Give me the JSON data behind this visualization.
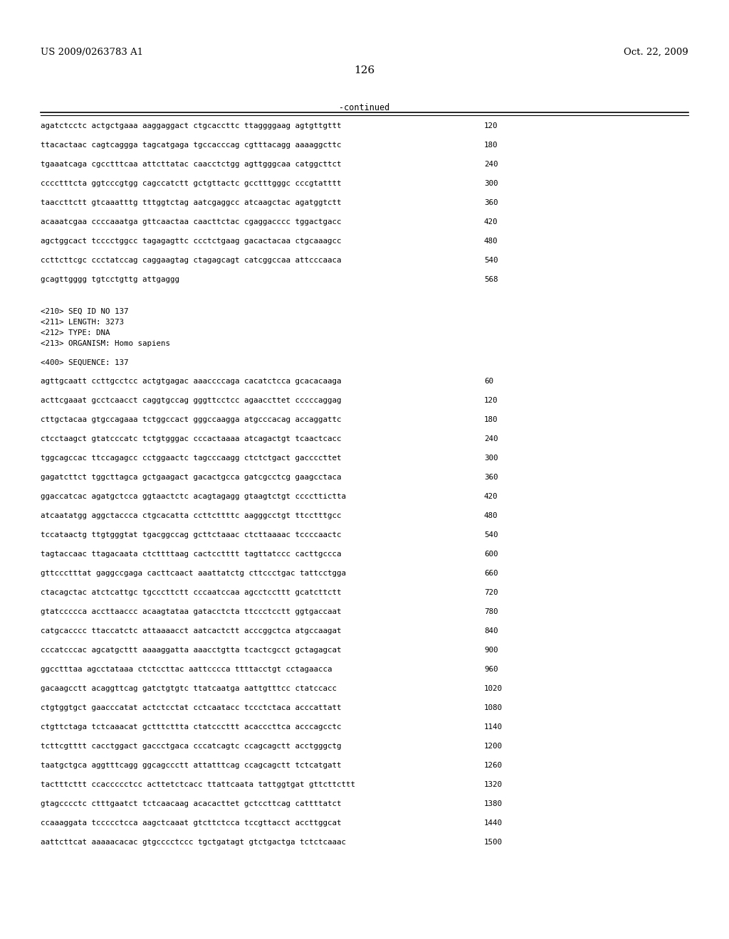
{
  "header_left": "US 2009/0263783 A1",
  "header_right": "Oct. 22, 2009",
  "page_number": "126",
  "continued_label": "-continued",
  "background_color": "#ffffff",
  "text_color": "#000000",
  "continued_section": [
    {
      "seq": "agatctcctc actgctgaaa aaggaggact ctgcaccttc ttaggggaag agtgttgttt",
      "num": "120"
    },
    {
      "seq": "ttacactaac cagtcaggga tagcatgaga tgccacccag cgtttacagg aaaaggcttc",
      "num": "180"
    },
    {
      "seq": "tgaaatcaga cgcctttcaa attcttatac caacctctgg agttgggcaa catggcttct",
      "num": "240"
    },
    {
      "seq": "cccctttcta ggtcccgtgg cagccatctt gctgttactc gcctttgggc cccgtatttt",
      "num": "300"
    },
    {
      "seq": "taaccttctt gtcaaatttg tttggtctag aatcgaggcc atcaagctac agatggtctt",
      "num": "360"
    },
    {
      "seq": "acaaatcgaa ccccaaatga gttcaactaa caacttctac cgaggacccc tggactgacc",
      "num": "420"
    },
    {
      "seq": "agctggcact tcccctggcc tagagagttc ccctctgaag gacactacaa ctgcaaagcc",
      "num": "480"
    },
    {
      "seq": "ccttcttcgc ccctatccag caggaagtag ctagagcagt catcggccaa attcccaaca",
      "num": "540"
    },
    {
      "seq": "gcagttgggg tgtcctgttg attgaggg",
      "num": "568"
    }
  ],
  "metadata": [
    "<210> SEQ ID NO 137",
    "<211> LENGTH: 3273",
    "<212> TYPE: DNA",
    "<213> ORGANISM: Homo sapiens"
  ],
  "seq_label": "<400> SEQUENCE: 137",
  "sequence_lines": [
    {
      "seq": "agttgcaatt ccttgcctcc actgtgagac aaaccccaga cacatctcca gcacacaaga",
      "num": "60"
    },
    {
      "seq": "acttcgaaat gcctcaacct caggtgccag gggttcctcc agaaccttet cccccaggag",
      "num": "120"
    },
    {
      "seq": "cttgctacaa gtgccagaaa tctggccact gggccaagga atgcccacag accaggattc",
      "num": "180"
    },
    {
      "seq": "ctcctaagct gtatcccatc tctgtgggac cccactaaaa atcagactgt tcaactcacc",
      "num": "240"
    },
    {
      "seq": "tggcagccac ttccagagcc cctggaactc tagcccaagg ctctctgact gaccccttet",
      "num": "300"
    },
    {
      "seq": "gagatcttct tggcttagca gctgaagact gacactgcca gatcgcctcg gaagcctaca",
      "num": "360"
    },
    {
      "seq": "ggaccatcac agatgctcca ggtaactctc acagtagagg gtaagtctgt ccccttictta",
      "num": "420"
    },
    {
      "seq": "atcaatatgg aggctaccca ctgcacatta ccttcttttc aagggcctgt ttcctttgcc",
      "num": "480"
    },
    {
      "seq": "tccataactg ttgtgggtat tgacggccag gcttctaaac ctcttaaaac tccccaactc",
      "num": "540"
    },
    {
      "seq": "tagtaccaac ttagacaata ctcttttaag cactcctttt tagttatccc cacttgccca",
      "num": "600"
    },
    {
      "seq": "gttccctttat gaggccgaga cacttcaact aaattatctg cttccctgac tattcctgga",
      "num": "660"
    },
    {
      "seq": "ctacagctac atctcattgc tgcccttctt cccaatccaa agcctccttt gcatcttctt",
      "num": "720"
    },
    {
      "seq": "gtatccccca accttaaccc acaagtataa gatacctcta ttccctcctt ggtgaccaat",
      "num": "780"
    },
    {
      "seq": "catgcacccc ttaccatctc attaaaacct aatcactctt acccggctca atgccaagat",
      "num": "840"
    },
    {
      "seq": "cccatcccac agcatgcttt aaaaggatta aaacctgtta tcactcgcct gctagagcat",
      "num": "900"
    },
    {
      "seq": "ggcctttaa agcctataaa ctctccttac aattcccca ttttacctgt cctagaacca",
      "num": "960"
    },
    {
      "seq": "gacaagcctt acaggttcag gatctgtgtc ttatcaatga aattgtttcc ctatccacc",
      "num": "1020"
    },
    {
      "seq": "ctgtggtgct gaacccatat actctcctat cctcaatacc tccctctaca acccattatt",
      "num": "1080"
    },
    {
      "seq": "ctgttctaga tctcaaacat gctttcttta ctatcccttt acacccttca acccagcctc",
      "num": "1140"
    },
    {
      "seq": "tcttcgtttt cacctggact gaccctgaca cccatcagtc ccagcagctt acctgggctg",
      "num": "1200"
    },
    {
      "seq": "taatgctgca aggtttcagg ggcagccctt attatttcag ccagcagctt tctcatgatt",
      "num": "1260"
    },
    {
      "seq": "tactttcttt ccaccccctcc acttetctcacc ttattcaata tattggtgat gttcttcttt",
      "num": "1320"
    },
    {
      "seq": "gtagcccctc ctttgaatct tctcaacaag acacacttet gctccttcag cattttatct",
      "num": "1380"
    },
    {
      "seq": "ccaaaggata tccccctcca aagctcaaat gtcttctcca tccgttacct accttggcat",
      "num": "1440"
    },
    {
      "seq": "aattcttcat aaaaacacac gtgcccctccc tgctgatagt gtctgactga tctctcaaac",
      "num": "1500"
    }
  ]
}
